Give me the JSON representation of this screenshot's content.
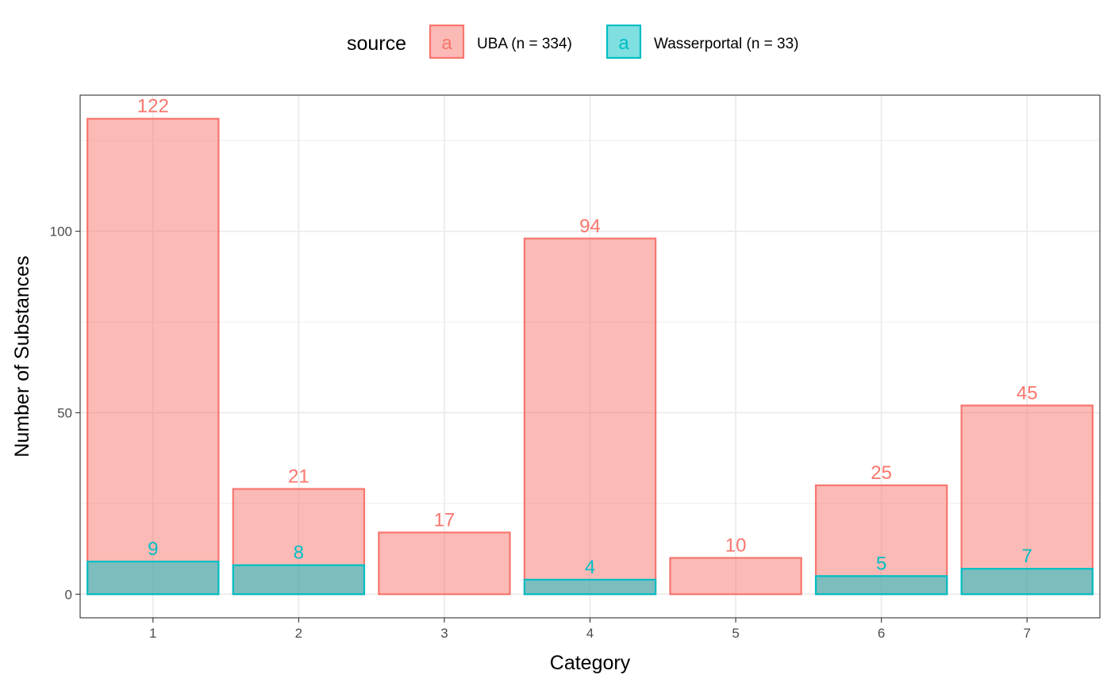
{
  "chart_data": {
    "type": "bar",
    "stacking": "overlay",
    "categories": [
      "1",
      "2",
      "3",
      "4",
      "5",
      "6",
      "7"
    ],
    "series": [
      {
        "name": "UBA (n = 334)",
        "color": "#F8766D",
        "values": [
          131,
          29,
          17,
          98,
          10,
          30,
          52
        ],
        "labels": [
          "122",
          "21",
          "17",
          "94",
          "10",
          "25",
          "45"
        ]
      },
      {
        "name": "Wasserportal (n = 33)",
        "color": "#00BFC4",
        "values": [
          9,
          8,
          0,
          4,
          0,
          5,
          7
        ],
        "labels": [
          "9",
          "8",
          "",
          "4",
          "",
          "5",
          "7"
        ]
      }
    ],
    "legend": {
      "title": "source",
      "position": "top",
      "key_glyph": "a"
    },
    "xlabel": "Category",
    "ylabel": "Number of Substances",
    "ylim": [
      -6.5,
      137.5
    ],
    "yticks": [
      0,
      50,
      100
    ],
    "grid": true
  }
}
